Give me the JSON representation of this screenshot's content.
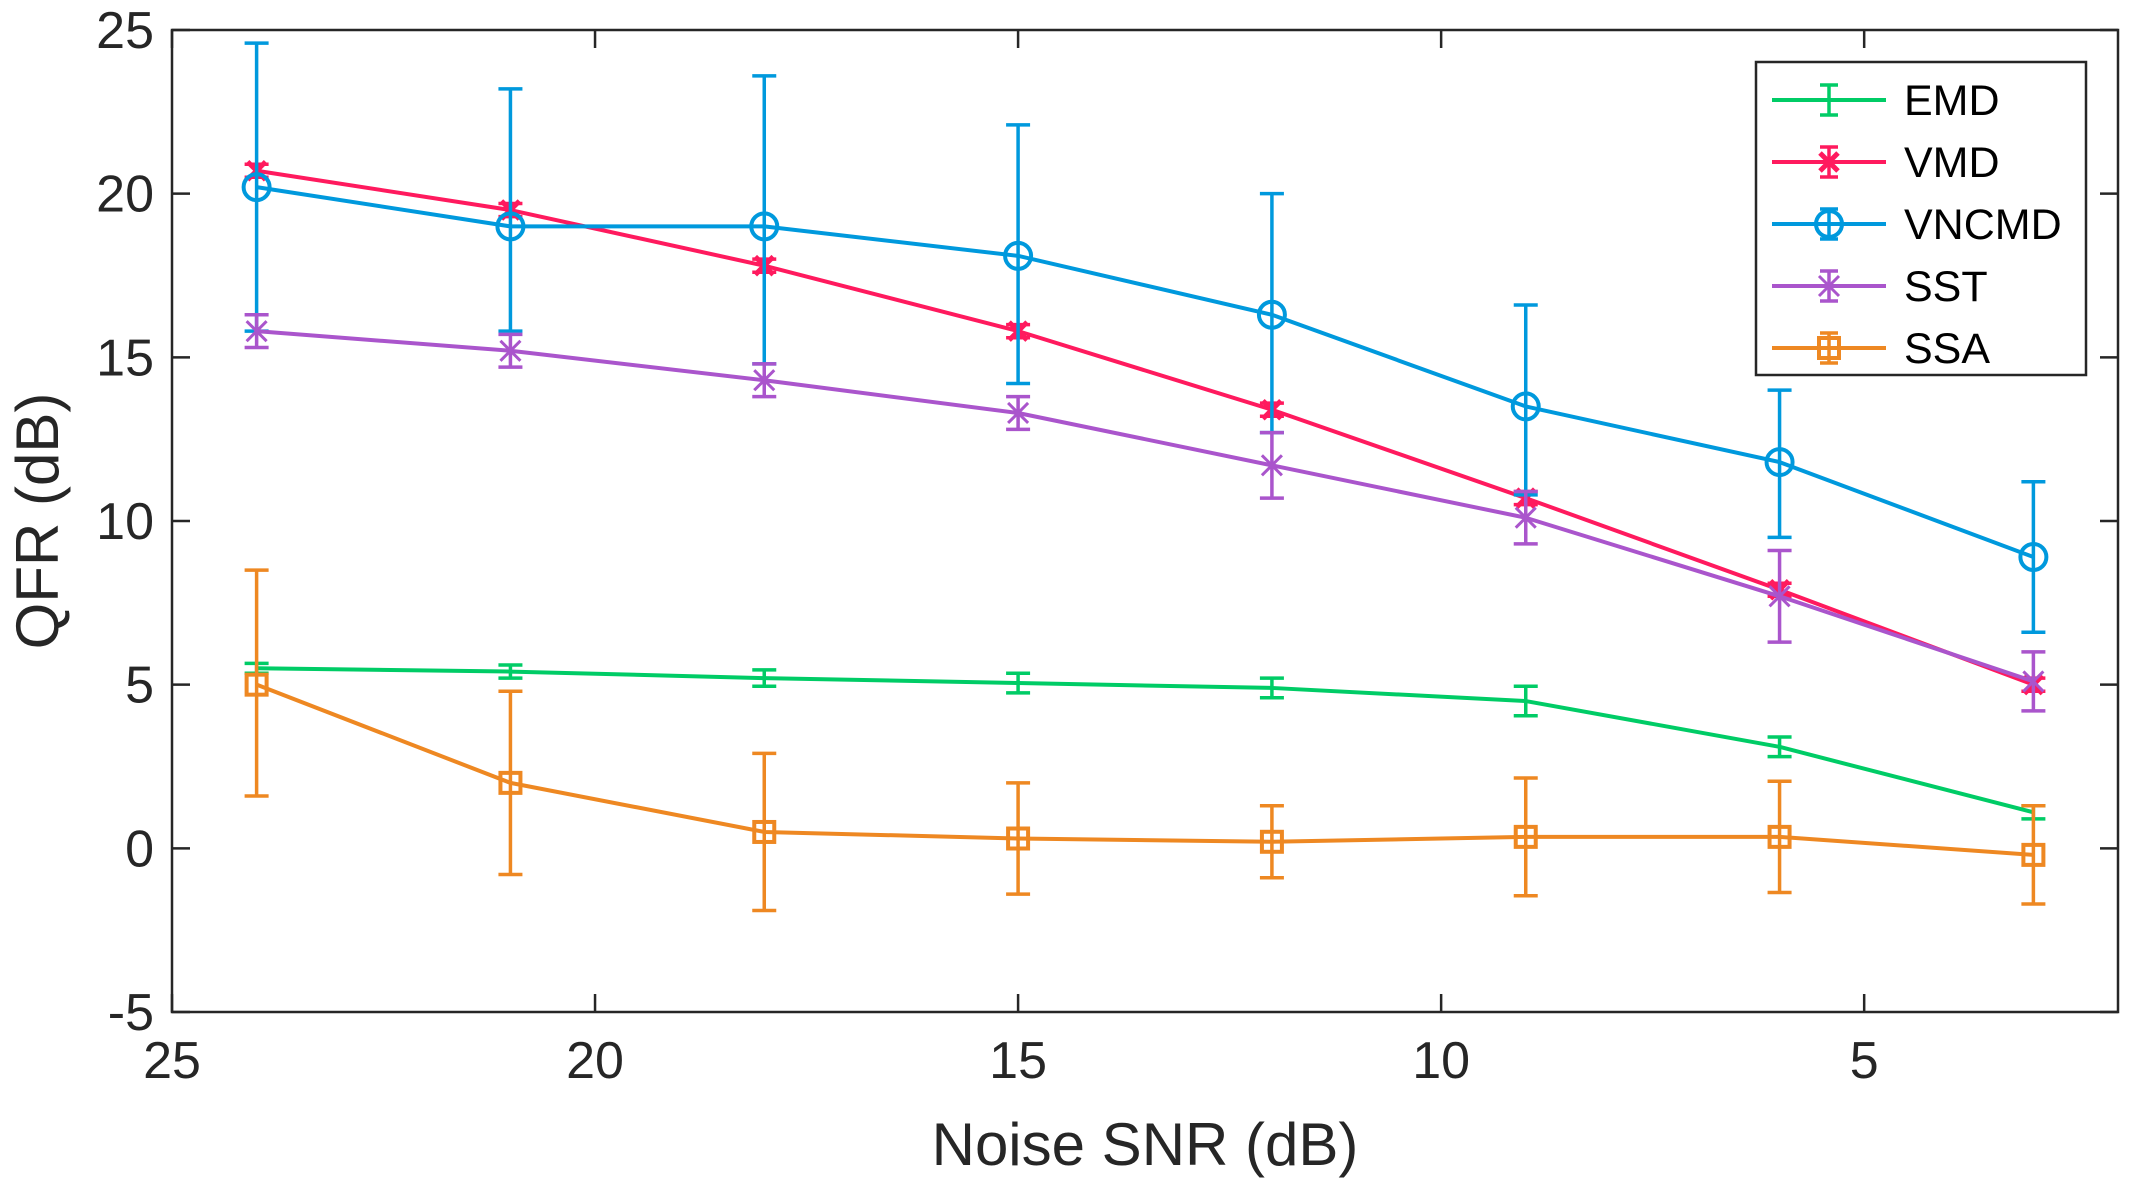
{
  "chart_data": {
    "type": "line",
    "title": "",
    "xlabel": "Noise SNR (dB)",
    "ylabel": "QFR (dB)",
    "xlim": [
      25,
      2
    ],
    "ylim": [
      -5,
      25
    ],
    "x_reversed": true,
    "grid": false,
    "legend_position": "top-right",
    "xticks": [
      25,
      20,
      15,
      10,
      5
    ],
    "xtick_labels": [
      "25",
      "20",
      "15",
      "10",
      "5"
    ],
    "yticks": [
      -5,
      0,
      5,
      10,
      15,
      20,
      25
    ],
    "ytick_labels": [
      "-5",
      "0",
      "5",
      "10",
      "15",
      "20",
      "25"
    ],
    "x": [
      24,
      21,
      18,
      15,
      12,
      9,
      6,
      3
    ],
    "series": [
      {
        "name": "EMD",
        "color": "#00cc66",
        "marker": "none",
        "values": [
          5.5,
          5.4,
          5.2,
          5.05,
          4.9,
          4.5,
          3.1,
          1.1
        ],
        "err_low": [
          0.15,
          0.2,
          0.25,
          0.3,
          0.3,
          0.45,
          0.3,
          0.2
        ],
        "err_high": [
          0.15,
          0.2,
          0.25,
          0.3,
          0.3,
          0.45,
          0.3,
          0.2
        ]
      },
      {
        "name": "VMD",
        "color": "#ff1a5e",
        "marker": "x",
        "values": [
          20.7,
          19.5,
          17.8,
          15.8,
          13.4,
          10.7,
          7.9,
          5.0
        ],
        "err_low": [
          0.2,
          0.2,
          0.2,
          0.2,
          0.2,
          0.2,
          0.2,
          0.2
        ],
        "err_high": [
          0.2,
          0.2,
          0.2,
          0.2,
          0.2,
          0.2,
          0.2,
          0.2
        ]
      },
      {
        "name": "VNCMD",
        "color": "#0099dd",
        "marker": "circle",
        "values": [
          20.2,
          19.0,
          19.0,
          18.1,
          16.3,
          13.5,
          11.8,
          8.9
        ],
        "err_low": [
          4.4,
          3.2,
          4.2,
          3.9,
          3.6,
          2.7,
          2.3,
          2.3
        ],
        "err_high": [
          4.4,
          4.2,
          4.6,
          4.0,
          3.7,
          3.1,
          2.2,
          2.3
        ]
      },
      {
        "name": "SST",
        "color": "#aa55cc",
        "marker": "star",
        "values": [
          15.8,
          15.2,
          14.3,
          13.3,
          11.7,
          10.1,
          7.7,
          5.1
        ],
        "err_low": [
          0.5,
          0.5,
          0.5,
          0.5,
          1.0,
          0.8,
          1.4,
          0.9
        ],
        "err_high": [
          0.5,
          0.5,
          0.5,
          0.5,
          1.0,
          0.8,
          1.4,
          0.9
        ]
      },
      {
        "name": "SSA",
        "color": "#ee8822",
        "marker": "square",
        "values": [
          5.0,
          2.0,
          0.5,
          0.3,
          0.2,
          0.35,
          0.35,
          -0.2
        ],
        "err_low": [
          3.4,
          2.8,
          2.4,
          1.7,
          1.1,
          1.8,
          1.7,
          1.5
        ],
        "err_high": [
          3.5,
          2.8,
          2.4,
          1.7,
          1.1,
          1.8,
          1.7,
          1.5
        ]
      }
    ]
  }
}
